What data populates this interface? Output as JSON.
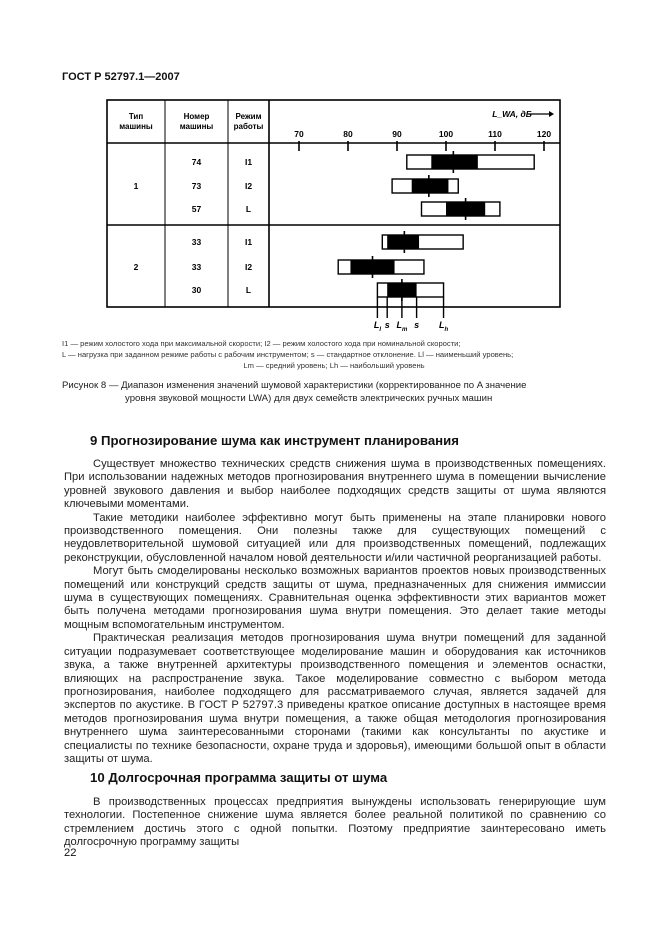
{
  "header": {
    "doc_id": "ГОСТ Р 52797.1—2007"
  },
  "chart_data": {
    "type": "range-box",
    "columns": [
      "Тип машины",
      "Номер машины",
      "Режим работы"
    ],
    "axis_label": "L_WA, дБ",
    "axis_ticks": [
      70,
      80,
      90,
      100,
      110,
      120
    ],
    "xlim": [
      70,
      120
    ],
    "groups": [
      {
        "type": "1",
        "rows": [
          {
            "number": "74",
            "mode": "I1",
            "Ll": 92,
            "Lm_minus_s": 97,
            "Lm": 101.5,
            "Lm_plus_s": 106.5,
            "Lh": 118
          },
          {
            "number": "73",
            "mode": "I2",
            "Ll": 89,
            "Lm_minus_s": 93,
            "Lm": 96.5,
            "Lm_plus_s": 100.5,
            "Lh": 102.5
          },
          {
            "number": "57",
            "mode": "L",
            "Ll": 95,
            "Lm_minus_s": 100,
            "Lm": 104,
            "Lm_plus_s": 108,
            "Lh": 111
          }
        ]
      },
      {
        "type": "2",
        "rows": [
          {
            "number": "33",
            "mode": "I1",
            "Ll": 87,
            "Lm_minus_s": 88,
            "Lm": 91.5,
            "Lm_plus_s": 94.5,
            "Lh": 103.5
          },
          {
            "number": "33",
            "mode": "I2",
            "Ll": 78,
            "Lm_minus_s": 80.5,
            "Lm": 85,
            "Lm_plus_s": 89.5,
            "Lh": 95.5
          },
          {
            "number": "30",
            "mode": "L",
            "Ll": 86,
            "Lm_minus_s": 88,
            "Lm": 91,
            "Lm_plus_s": 94,
            "Lh": 99.5
          }
        ]
      }
    ],
    "key_labels": [
      "Ll",
      "s",
      "Lm",
      "s",
      "Lh"
    ],
    "colors": {
      "box": "#ffffff",
      "std_band": "#000000",
      "line": "#000000"
    }
  },
  "notes": {
    "line1": "I1 — режим холостого хода при максимальной скорости;  I2 — режим холостого хода при номинальной скорости;",
    "line2": "L — нагрузка при заданном режиме работы с рабочим инструментом; s — стандартное отклонение. Ll — наименьший уровень;",
    "line3": "Lm — средний уровень; Lh — наибольший уровень"
  },
  "caption": {
    "line1": "Рисунок 8 — Диапазон изменения значений шумовой характеристики (корректированное по A значение",
    "line2": "уровня звуковой мощности LWA) для двух семейств электрических ручных машин"
  },
  "section9": {
    "heading": "9 Прогнозирование шума как инструмент планирования",
    "paragraphs": [
      "Существует множество технических средств снижения шума в производственных помещениях. При использовании надежных методов прогнозирования внутреннего шума в помещении вычисление уровней звукового давления и выбор наиболее подходящих средств защиты от шума являются ключевыми моментами.",
      "Такие методики наиболее эффективно могут быть применены на этапе планировки нового производственного помещения. Они полезны также для существующих помещений с неудовлетворительной шумовой ситуацией или для производственных помещений, подлежащих реконструкции, обусловленной началом новой деятельности и/или частичной реорганизацией работы.",
      "Могут быть смоделированы несколько возможных вариантов проектов новых производственных помещений или конструкций средств защиты от  шума, предназначенных для снижения иммиссии шума в существующих помещениях. Сравнительная оценка эффективности этих вариантов может быть получена методами прогнозирования шума внутри помещения. Это делает такие методы мощным вспомогательным инструментом.",
      "Практическая реализация методов прогнозирования шума внутри помещений для заданной ситуации подразумевает соответствующее моделирование машин и оборудования как источников звука, а также внутренней архитектуры производственного помещения и элементов оснастки, влияющих на распространение звука. Такое моделирование совместно с выбором метода прогнозирования, наиболее подходящего для рассматриваемого случая, является задачей для экспертов по акустике. В ГОСТ Р 52797.3 приведены краткое описание доступных в настоящее время методов прогнозирования шума внутри помещения, а также общая методология прогнозирования внутреннего шума заинтересованными сторонами (такими как консультанты по акустике и специалисты по технике безопасности, охране труда и здоровья), имеющими большой опыт в области защиты от шума."
    ]
  },
  "section10": {
    "heading": "10 Долгосрочная программа защиты от шума",
    "paragraphs": [
      "В производственных процессах предприятия вынуждены использовать генерирующие шум технологии. Постепенное снижение шума является более реальной политикой по сравнению со стремлением достичь этого с одной попытки. Поэтому предприятие заинтересовано иметь долгосрочную программу защиты"
    ]
  },
  "page_number": "22"
}
